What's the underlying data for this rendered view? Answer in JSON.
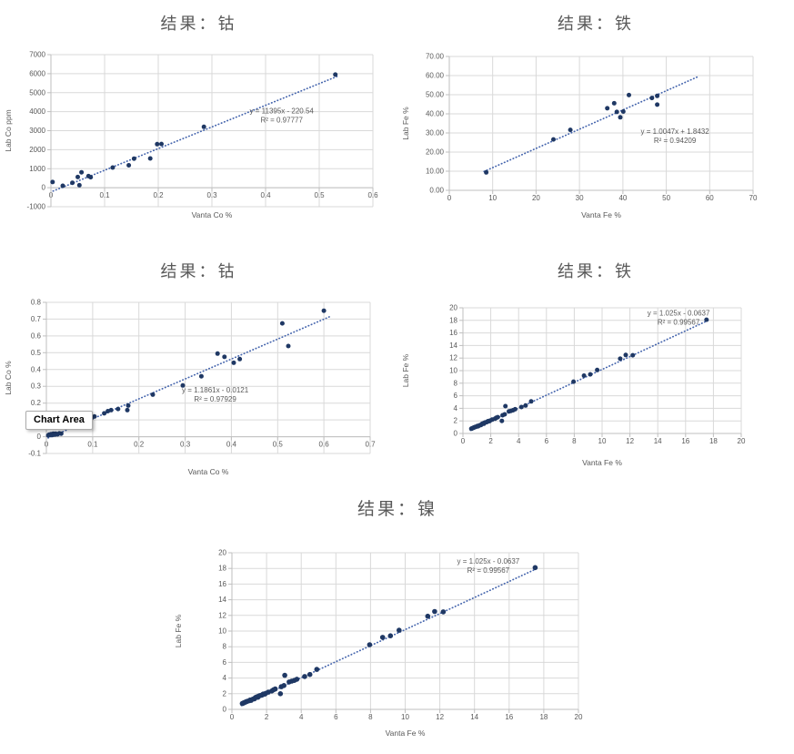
{
  "tooltip": {
    "label": "Chart Area"
  },
  "colors": {
    "point": "#1f3864",
    "trend": "#4565ad",
    "grid": "#d9d9d9",
    "axis": "#bfbfbf",
    "text": "#595959",
    "title": "#595959"
  },
  "chart_data": [
    {
      "type": "scatter",
      "title": "结果：钴",
      "xlabel": "Vanta Co %",
      "ylabel": "Lab Co ppm",
      "xlim": [
        0,
        0.6
      ],
      "xstep": 0.1,
      "ylim": [
        -1000,
        7000
      ],
      "ystep": 1000,
      "xticks": [
        "0",
        "0.1",
        "0.2",
        "0.3",
        "0.4",
        "0.5",
        "0.6"
      ],
      "yticks": [
        "-1000",
        "0",
        "1000",
        "2000",
        "3000",
        "4000",
        "5000",
        "6000",
        "7000"
      ],
      "equation": "y = 11395x - 220.54",
      "r2": "R² = 0.97777",
      "eq_at": [
        0.43,
        3900
      ],
      "trend": {
        "slope": 11395,
        "intercept": -220.54,
        "x0": 0.004,
        "x1": 0.535
      },
      "points": [
        [
          0.003,
          300
        ],
        [
          0.022,
          100
        ],
        [
          0.04,
          260
        ],
        [
          0.05,
          560
        ],
        [
          0.053,
          130
        ],
        [
          0.057,
          810
        ],
        [
          0.07,
          610
        ],
        [
          0.074,
          550
        ],
        [
          0.115,
          1060
        ],
        [
          0.145,
          1180
        ],
        [
          0.155,
          1530
        ],
        [
          0.185,
          1540
        ],
        [
          0.198,
          2290
        ],
        [
          0.206,
          2300
        ],
        [
          0.285,
          3200
        ],
        [
          0.53,
          5950
        ]
      ]
    },
    {
      "type": "scatter",
      "title": "结果：铁",
      "xlabel": "Vanta Fe %",
      "ylabel": "Lab Fe %",
      "xlim": [
        0,
        70
      ],
      "xstep": 10,
      "ylim": [
        0,
        70
      ],
      "ystep": 10,
      "xticks": [
        "0",
        "10",
        "20",
        "30",
        "40",
        "50",
        "60",
        "70"
      ],
      "yticks": [
        "0.00",
        "10.00",
        "20.00",
        "30.00",
        "40.00",
        "50.00",
        "60.00",
        "70.00"
      ],
      "equation": "y = 1.0047x + 1.8432",
      "r2": "R² = 0.94209",
      "eq_at": [
        52,
        29.5
      ],
      "trend": {
        "slope": 1.0047,
        "intercept": 1.8432,
        "x0": 8,
        "x1": 57.5
      },
      "points": [
        [
          8.5,
          9.4
        ],
        [
          24,
          26.6
        ],
        [
          27.9,
          31.6
        ],
        [
          36.4,
          42.9
        ],
        [
          38,
          45.5
        ],
        [
          38.6,
          41.0
        ],
        [
          39.4,
          38.2
        ],
        [
          40.1,
          41.2
        ],
        [
          41.4,
          49.8
        ],
        [
          46.7,
          48.3
        ],
        [
          47.9,
          49.4
        ],
        [
          47.9,
          44.8
        ]
      ]
    },
    {
      "type": "scatter",
      "title": "结果：钴",
      "xlabel": "Vanta Co %",
      "ylabel": "Lab Co %",
      "xlim": [
        0,
        0.7
      ],
      "xstep": 0.1,
      "ylim": [
        -0.1,
        0.8
      ],
      "ystep": 0.1,
      "xticks": [
        "0",
        "0.1",
        "0.2",
        "0.3",
        "0.4",
        "0.5",
        "0.6",
        "0.7"
      ],
      "yticks": [
        "-0.1",
        "0",
        "0.1",
        "0.2",
        "0.3",
        "0.4",
        "0.5",
        "0.6",
        "0.7",
        "0.8"
      ],
      "equation": "y = 1.1861x - 0.0121",
      "r2": "R² = 0.97929",
      "eq_at": [
        0.365,
        0.262
      ],
      "trend": {
        "slope": 1.1861,
        "intercept": -0.0121,
        "x0": 0.004,
        "x1": 0.615
      },
      "points": [
        [
          0.004,
          0.008
        ],
        [
          0.006,
          0.013
        ],
        [
          0.008,
          0.01
        ],
        [
          0.01,
          0.015
        ],
        [
          0.013,
          0.01
        ],
        [
          0.015,
          0.018
        ],
        [
          0.018,
          0.012
        ],
        [
          0.02,
          0.018
        ],
        [
          0.024,
          0.014
        ],
        [
          0.028,
          0.02
        ],
        [
          0.032,
          0.018
        ],
        [
          0.018,
          0.115
        ],
        [
          0.045,
          0.09
        ],
        [
          0.065,
          0.105
        ],
        [
          0.068,
          0.082
        ],
        [
          0.08,
          0.096
        ],
        [
          0.09,
          0.1
        ],
        [
          0.098,
          0.112
        ],
        [
          0.104,
          0.12
        ],
        [
          0.125,
          0.139
        ],
        [
          0.133,
          0.152
        ],
        [
          0.14,
          0.158
        ],
        [
          0.155,
          0.165
        ],
        [
          0.175,
          0.158
        ],
        [
          0.177,
          0.185
        ],
        [
          0.23,
          0.25
        ],
        [
          0.295,
          0.305
        ],
        [
          0.335,
          0.36
        ],
        [
          0.37,
          0.495
        ],
        [
          0.385,
          0.475
        ],
        [
          0.405,
          0.44
        ],
        [
          0.418,
          0.462
        ],
        [
          0.51,
          0.675
        ],
        [
          0.523,
          0.54
        ],
        [
          0.6,
          0.75
        ]
      ]
    },
    {
      "type": "scatter",
      "title": "结果：铁",
      "xlabel": "Vanta Fe %",
      "ylabel": "Lab Fe %",
      "xlim": [
        0,
        20
      ],
      "xstep": 2,
      "ylim": [
        0,
        20
      ],
      "ystep": 2,
      "xticks": [
        "0",
        "2",
        "4",
        "6",
        "8",
        "10",
        "12",
        "14",
        "16",
        "18",
        "20"
      ],
      "yticks": [
        "0",
        "2",
        "4",
        "6",
        "8",
        "10",
        "12",
        "14",
        "16",
        "18",
        "20"
      ],
      "equation": "y = 1.025x - 0.0637",
      "r2": "R² = 0.99567",
      "eq_at": [
        15.5,
        18.8
      ],
      "trend": {
        "slope": 1.025,
        "intercept": -0.0637,
        "x0": 0.55,
        "x1": 17.6
      },
      "points": [
        [
          0.6,
          0.75
        ],
        [
          0.65,
          0.8
        ],
        [
          0.7,
          0.85
        ],
        [
          0.75,
          0.9
        ],
        [
          0.8,
          0.95
        ],
        [
          0.85,
          1.0
        ],
        [
          0.9,
          1.05
        ],
        [
          1.0,
          1.1
        ],
        [
          1.05,
          1.2
        ],
        [
          1.1,
          1.15
        ],
        [
          1.2,
          1.3
        ],
        [
          1.3,
          1.35
        ],
        [
          1.35,
          1.5
        ],
        [
          1.4,
          1.55
        ],
        [
          1.45,
          1.6
        ],
        [
          1.5,
          1.55
        ],
        [
          1.55,
          1.7
        ],
        [
          1.6,
          1.75
        ],
        [
          1.7,
          1.8
        ],
        [
          1.75,
          1.85
        ],
        [
          1.8,
          1.95
        ],
        [
          1.9,
          1.95
        ],
        [
          1.95,
          2.05
        ],
        [
          2.1,
          2.2
        ],
        [
          2.3,
          2.35
        ],
        [
          2.4,
          2.5
        ],
        [
          2.5,
          2.6
        ],
        [
          2.8,
          2.0
        ],
        [
          2.85,
          2.9
        ],
        [
          3.0,
          3.05
        ],
        [
          3.05,
          4.35
        ],
        [
          3.3,
          3.5
        ],
        [
          3.45,
          3.6
        ],
        [
          3.6,
          3.7
        ],
        [
          3.75,
          3.85
        ],
        [
          4.2,
          4.2
        ],
        [
          4.5,
          4.45
        ],
        [
          4.9,
          5.1
        ],
        [
          7.95,
          8.25
        ],
        [
          8.7,
          9.2
        ],
        [
          9.15,
          9.4
        ],
        [
          9.65,
          10.1
        ],
        [
          11.3,
          11.9
        ],
        [
          11.7,
          12.5
        ],
        [
          12.2,
          12.45
        ],
        [
          17.5,
          18.1
        ]
      ]
    },
    {
      "type": "scatter",
      "title": "结果：镍",
      "xlabel": "Vanta Fe %",
      "ylabel": "Lab Fe %",
      "xlim": [
        0,
        20
      ],
      "xstep": 2,
      "ylim": [
        0,
        20
      ],
      "ystep": 2,
      "xticks": [
        "0",
        "2",
        "4",
        "6",
        "8",
        "10",
        "12",
        "14",
        "16",
        "18",
        "20"
      ],
      "yticks": [
        "0",
        "2",
        "4",
        "6",
        "8",
        "10",
        "12",
        "14",
        "16",
        "18",
        "20"
      ],
      "equation": "y = 1.025x - 0.0637",
      "r2": "R² = 0.99567",
      "eq_at": [
        14.8,
        18.6
      ],
      "trend": {
        "slope": 1.025,
        "intercept": -0.0637,
        "x0": 0.55,
        "x1": 17.6
      },
      "points": [
        [
          0.6,
          0.75
        ],
        [
          0.65,
          0.8
        ],
        [
          0.7,
          0.85
        ],
        [
          0.75,
          0.9
        ],
        [
          0.8,
          0.95
        ],
        [
          0.85,
          1.0
        ],
        [
          0.9,
          1.05
        ],
        [
          1.0,
          1.1
        ],
        [
          1.05,
          1.2
        ],
        [
          1.1,
          1.15
        ],
        [
          1.2,
          1.3
        ],
        [
          1.3,
          1.35
        ],
        [
          1.35,
          1.5
        ],
        [
          1.4,
          1.55
        ],
        [
          1.45,
          1.6
        ],
        [
          1.5,
          1.55
        ],
        [
          1.55,
          1.7
        ],
        [
          1.6,
          1.75
        ],
        [
          1.7,
          1.8
        ],
        [
          1.75,
          1.85
        ],
        [
          1.8,
          1.95
        ],
        [
          1.9,
          1.95
        ],
        [
          1.95,
          2.05
        ],
        [
          2.1,
          2.2
        ],
        [
          2.3,
          2.35
        ],
        [
          2.4,
          2.5
        ],
        [
          2.5,
          2.6
        ],
        [
          2.8,
          2.0
        ],
        [
          2.85,
          2.9
        ],
        [
          3.0,
          3.05
        ],
        [
          3.05,
          4.35
        ],
        [
          3.3,
          3.5
        ],
        [
          3.45,
          3.6
        ],
        [
          3.6,
          3.7
        ],
        [
          3.75,
          3.85
        ],
        [
          4.2,
          4.2
        ],
        [
          4.5,
          4.45
        ],
        [
          4.9,
          5.1
        ],
        [
          7.95,
          8.25
        ],
        [
          8.7,
          9.2
        ],
        [
          9.15,
          9.4
        ],
        [
          9.65,
          10.1
        ],
        [
          11.3,
          11.9
        ],
        [
          11.7,
          12.5
        ],
        [
          12.2,
          12.45
        ],
        [
          17.5,
          18.1
        ]
      ]
    }
  ]
}
